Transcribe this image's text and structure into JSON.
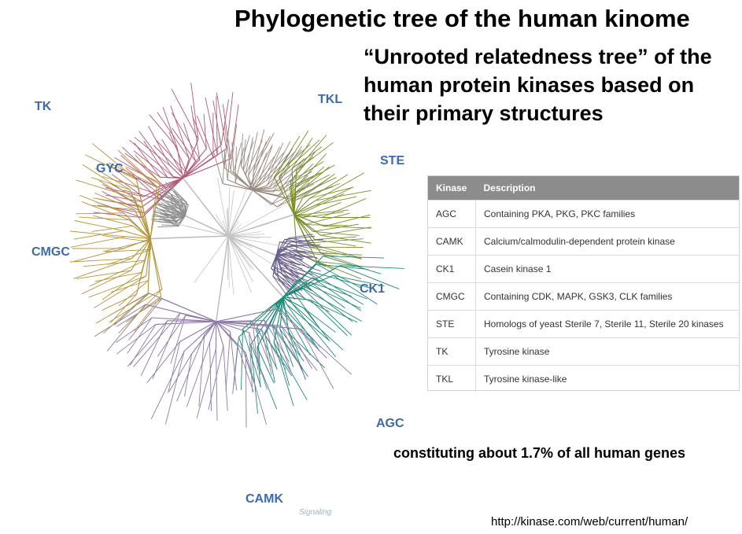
{
  "title": "Phylogenetic tree of the human kinome",
  "subtitle": "“Unrooted relatedness tree” of the human protein kinases based on their primary structures",
  "footnote": "constituting about 1.7% of all human genes",
  "source_url": "http://kinase.com/web/current/human/",
  "watermark": "Signaling",
  "tree": {
    "center_label": "PDHK",
    "groups": [
      {
        "name": "TK",
        "color": "#b25a78"
      },
      {
        "name": "TKL",
        "color": "#9a8a80"
      },
      {
        "name": "STE",
        "color": "#7a8f2a"
      },
      {
        "name": "CK1",
        "color": "#6a5f8c"
      },
      {
        "name": "AGC",
        "color": "#1d8a78"
      },
      {
        "name": "CAMK",
        "color": "#8e7aa8"
      },
      {
        "name": "CMGC",
        "color": "#b5953a"
      },
      {
        "name": "GYC",
        "color": "#8e8e8e"
      }
    ]
  },
  "table": {
    "headers": [
      "Kinase",
      "Description"
    ],
    "rows": [
      {
        "kinase": "AGC",
        "description": "Containing PKA, PKG, PKC families"
      },
      {
        "kinase": "CAMK",
        "description": "Calcium/calmodulin-dependent protein kinase"
      },
      {
        "kinase": "CK1",
        "description": "Casein kinase 1"
      },
      {
        "kinase": "CMGC",
        "description": "Containing CDK, MAPK, GSK3, CLK families"
      },
      {
        "kinase": "STE",
        "description": "Homologs of yeast Sterile 7, Sterile 11, Sterile 20 kinases"
      },
      {
        "kinase": "TK",
        "description": "Tyrosine kinase"
      },
      {
        "kinase": "TKL",
        "description": "Tyrosine kinase-like"
      }
    ]
  }
}
